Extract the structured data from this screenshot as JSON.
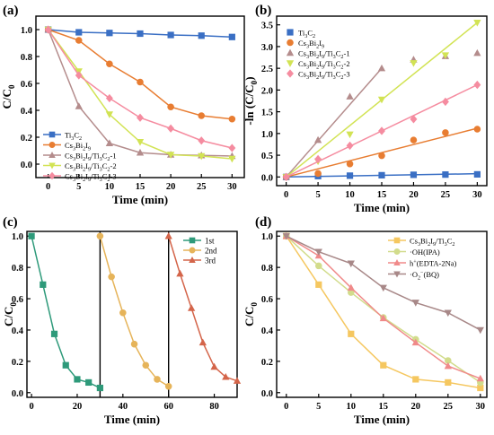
{
  "chart_data": [
    {
      "panel": "(a)",
      "type": "line",
      "xlabel": "Time (min)",
      "ylabel": "C/C0",
      "xlim": [
        -2,
        32
      ],
      "ylim": [
        -0.1,
        1.1
      ],
      "xticks": [
        0,
        5,
        10,
        15,
        20,
        25,
        30
      ],
      "yticks": [
        0.0,
        0.2,
        0.4,
        0.6,
        0.8,
        1.0
      ],
      "legend_position": "bottom-left",
      "x": [
        0,
        5,
        10,
        15,
        20,
        25,
        30
      ],
      "series": [
        {
          "name": "Ti3C2",
          "marker": "square",
          "color": "#3a6fc4",
          "values": [
            1.0,
            0.98,
            0.975,
            0.97,
            0.96,
            0.955,
            0.945
          ]
        },
        {
          "name": "Cs3Bi2I9",
          "marker": "circle",
          "color": "#e87d32",
          "values": [
            1.0,
            0.92,
            0.745,
            0.61,
            0.425,
            0.36,
            0.335
          ]
        },
        {
          "name": "Cs3Bi2I9/Ti3C2-1",
          "marker": "triangle",
          "color": "#b48c8c",
          "values": [
            1.0,
            0.43,
            0.155,
            0.085,
            0.07,
            0.065,
            0.06
          ]
        },
        {
          "name": "Cs3Bi2I9/Ti3C2-2",
          "marker": "triangle-down",
          "color": "#d2e354",
          "values": [
            1.0,
            0.69,
            0.37,
            0.165,
            0.07,
            0.06,
            0.04
          ]
        },
        {
          "name": "Cs3Bi2I9/Ti3C2-3",
          "marker": "diamond",
          "color": "#f58ca0",
          "values": [
            1.0,
            0.66,
            0.49,
            0.345,
            0.265,
            0.175,
            0.12
          ]
        }
      ]
    },
    {
      "panel": "(b)",
      "type": "scatter-fit",
      "xlabel": "Time (min)",
      "ylabel": "-ln (C/C0)",
      "xlim": [
        -1.5,
        31.5
      ],
      "ylim": [
        -0.2,
        3.7
      ],
      "xticks": [
        0,
        5,
        10,
        15,
        20,
        25,
        30
      ],
      "yticks": [
        0.0,
        0.5,
        1.0,
        1.5,
        2.0,
        2.5,
        3.0,
        3.5
      ],
      "legend_position": "top-left",
      "x": [
        0,
        5,
        10,
        15,
        20,
        25,
        30
      ],
      "series": [
        {
          "name": "Ti3C2",
          "marker": "square",
          "color": "#3a6fc4",
          "values": [
            0,
            0.02,
            0.03,
            0.04,
            0.05,
            0.055,
            0.06
          ],
          "fit_end": 0.075
        },
        {
          "name": "Cs3Bi2I9",
          "marker": "circle",
          "color": "#e87d32",
          "values": [
            0,
            0.08,
            0.3,
            0.49,
            0.85,
            1.02,
            1.1
          ],
          "fit_end": 1.12
        },
        {
          "name": "Cs3Bi2I9/Ti3C2-1",
          "marker": "triangle",
          "color": "#b48c8c",
          "values": [
            0,
            0.85,
            1.85,
            2.5,
            2.7,
            2.78,
            2.85
          ],
          "fit_x_end": 15,
          "fit_end": 2.5
        },
        {
          "name": "Cs3Bi2I9/Ti3C2-2",
          "marker": "triangle-down",
          "color": "#d2e354",
          "values": [
            0,
            0.36,
            0.98,
            1.78,
            2.62,
            2.8,
            3.55
          ],
          "fit_end": 3.55
        },
        {
          "name": "Cs3Bi2I9/Ti3C2-3",
          "marker": "diamond",
          "color": "#f58ca0",
          "values": [
            0,
            0.41,
            0.72,
            1.06,
            1.33,
            1.73,
            2.12
          ],
          "fit_end": 2.12
        }
      ]
    },
    {
      "panel": "(c)",
      "type": "line",
      "xlabel": "Time (min)",
      "ylabel": "C/C0",
      "xlim": [
        -2,
        90
      ],
      "ylim": [
        -0.03,
        1.03
      ],
      "xticks": [
        0,
        20,
        40,
        60,
        80
      ],
      "yticks": [
        0.0,
        0.2,
        0.4,
        0.6,
        0.8,
        1.0
      ],
      "legend_position": "top-right",
      "cycle_dividers": [
        30,
        60
      ],
      "series": [
        {
          "name": "1st",
          "marker": "square",
          "color": "#2e9a7a",
          "x": [
            0,
            5,
            10,
            15,
            20,
            25,
            30
          ],
          "values": [
            1.0,
            0.69,
            0.375,
            0.175,
            0.085,
            0.065,
            0.03
          ]
        },
        {
          "name": "2nd",
          "marker": "circle",
          "color": "#e6b45a",
          "x": [
            30,
            35,
            40,
            45,
            50,
            55,
            60
          ],
          "values": [
            1.0,
            0.74,
            0.51,
            0.31,
            0.175,
            0.085,
            0.04
          ]
        },
        {
          "name": "3rd",
          "marker": "triangle",
          "color": "#d4654a",
          "x": [
            60,
            65,
            70,
            75,
            80,
            85,
            90
          ],
          "values": [
            1.0,
            0.76,
            0.54,
            0.32,
            0.165,
            0.1,
            0.075
          ]
        }
      ]
    },
    {
      "panel": "(d)",
      "type": "line",
      "xlabel": "Time (min)",
      "ylabel": "C/C0",
      "xlim": [
        -1.5,
        31
      ],
      "ylim": [
        -0.03,
        1.03
      ],
      "xticks": [
        0,
        5,
        10,
        15,
        20,
        25,
        30
      ],
      "yticks": [
        0.0,
        0.2,
        0.4,
        0.6,
        0.8,
        1.0
      ],
      "legend_position": "top-right",
      "x": [
        0,
        5,
        10,
        15,
        20,
        25,
        30
      ],
      "series": [
        {
          "name": "Cs3Bi2I9/Ti3C2",
          "marker": "square",
          "color": "#f5c760",
          "values": [
            1.0,
            0.69,
            0.375,
            0.175,
            0.085,
            0.065,
            0.03
          ]
        },
        {
          "name": "·OH(IPA)",
          "marker": "circle",
          "color": "#d2dc8c",
          "values": [
            1.0,
            0.81,
            0.64,
            0.48,
            0.34,
            0.205,
            0.065
          ]
        },
        {
          "name": "h+(EDTA-2Na)",
          "marker": "triangle",
          "color": "#f08a8a",
          "values": [
            1.0,
            0.875,
            0.67,
            0.475,
            0.32,
            0.17,
            0.09
          ]
        },
        {
          "name": "·O2−(BQ)",
          "marker": "triangle-down",
          "color": "#a88888",
          "values": [
            1.0,
            0.9,
            0.825,
            0.67,
            0.575,
            0.51,
            0.4
          ]
        }
      ]
    }
  ]
}
